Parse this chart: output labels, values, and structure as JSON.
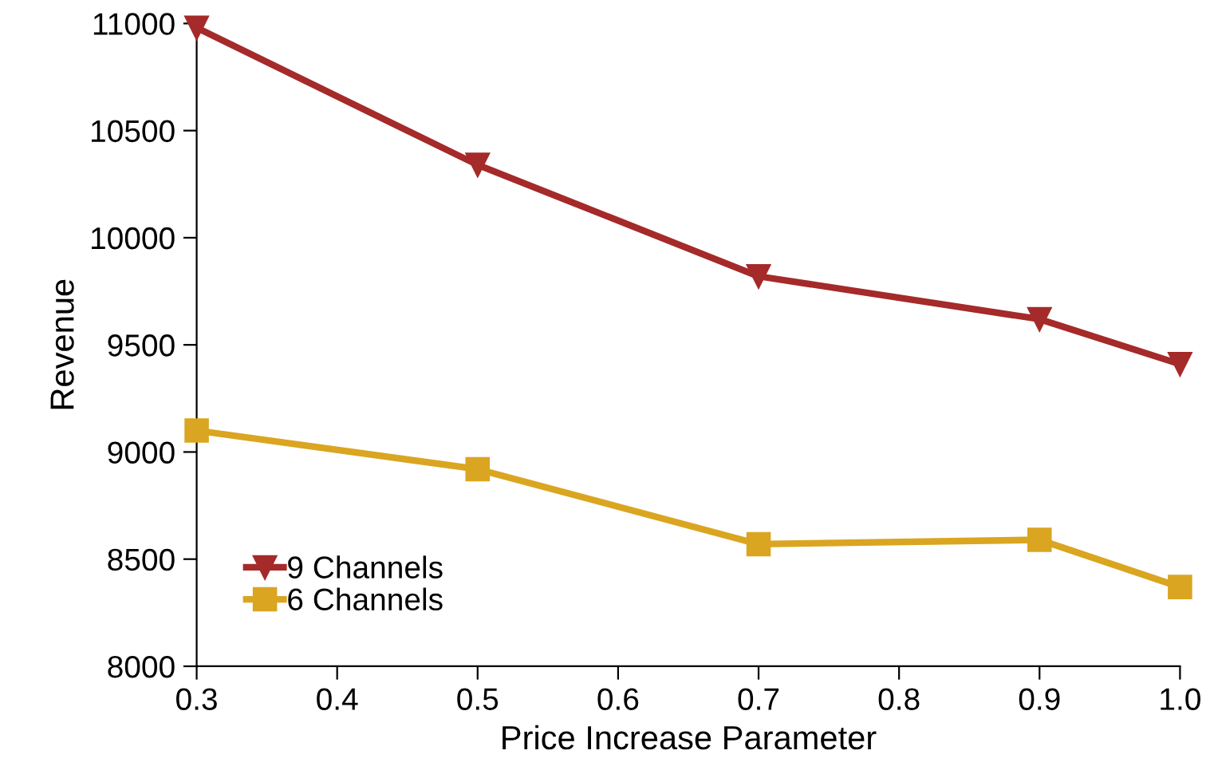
{
  "chart_data": {
    "type": "line",
    "xlabel": "Price Increase Parameter",
    "ylabel": "Revenue",
    "x": [
      0.3,
      0.5,
      0.7,
      0.9,
      1.0
    ],
    "series": [
      {
        "name": "9 Channels",
        "color": "#a52a2a",
        "marker": "triangle_down",
        "values": [
          10980,
          10340,
          9820,
          9620,
          9410
        ]
      },
      {
        "name": "6 Channels",
        "color": "#daa520",
        "marker": "square",
        "values": [
          9100,
          8920,
          8570,
          8590,
          8370
        ]
      }
    ],
    "xlim": [
      0.3,
      1.0
    ],
    "xticks": [
      0.3,
      0.4,
      0.5,
      0.6,
      0.7,
      0.8,
      0.9,
      {
        "value": 1,
        "label": "1.0"
      }
    ],
    "ylim": [
      8000,
      11000
    ],
    "yticks": [
      8000,
      8500,
      9000,
      9500,
      10000,
      10500,
      11000
    ],
    "grid": false,
    "legend": "bottom left",
    "line_style": "solid"
  }
}
